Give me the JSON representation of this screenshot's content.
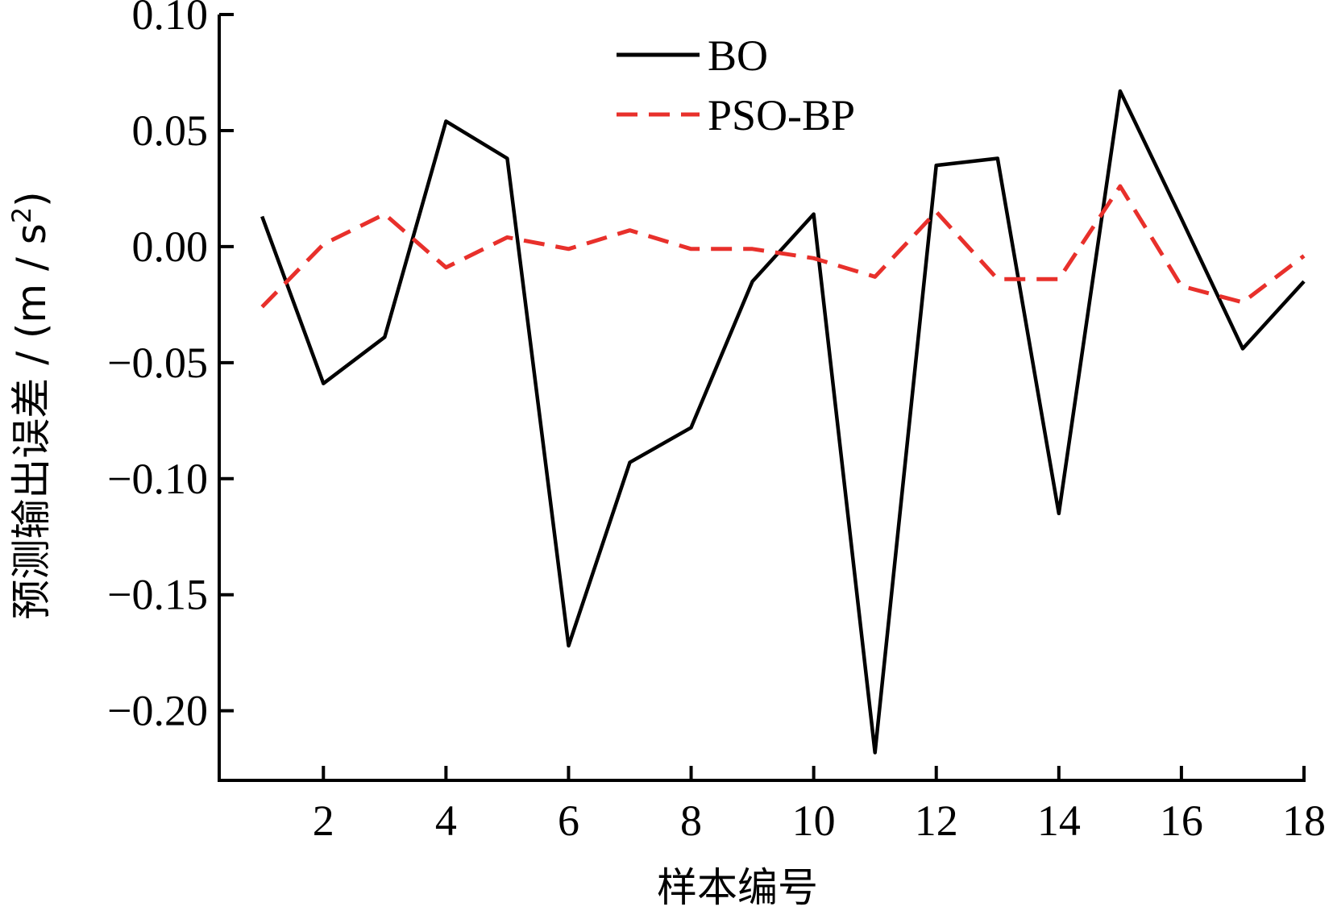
{
  "chart_data": {
    "type": "line",
    "x": [
      1,
      2,
      3,
      4,
      5,
      6,
      7,
      8,
      9,
      10,
      11,
      12,
      13,
      14,
      15,
      16,
      17,
      18
    ],
    "series": [
      {
        "name": "BO",
        "color": "#000000",
        "dash": "solid",
        "values": [
          0.013,
          -0.059,
          -0.039,
          0.054,
          0.038,
          -0.172,
          -0.093,
          -0.078,
          -0.015,
          0.014,
          -0.218,
          0.035,
          0.038,
          -0.115,
          0.067,
          0.012,
          -0.044,
          -0.015
        ]
      },
      {
        "name": "PSO-BP",
        "color": "#e8302b",
        "dash": "dashed",
        "values": [
          -0.026,
          0.001,
          0.014,
          -0.009,
          0.004,
          -0.001,
          0.007,
          -0.001,
          -0.001,
          -0.005,
          -0.013,
          0.015,
          -0.014,
          -0.014,
          0.026,
          -0.017,
          -0.024,
          -0.004
        ]
      }
    ],
    "xlabel": "样本编号",
    "ylabel_main": "预测输出误差 / (m / s",
    "ylabel_sup": "2",
    "ylabel_end": ")",
    "xlim": [
      0.3,
      18
    ],
    "ylim": [
      -0.23,
      0.1
    ],
    "xticks": [
      2,
      4,
      6,
      8,
      10,
      12,
      14,
      16,
      18
    ],
    "xtick_labels": [
      "2",
      "4",
      "6",
      "8",
      "10",
      "12",
      "14",
      "16",
      "18"
    ],
    "yticks": [
      0.1,
      0.05,
      0.0,
      -0.05,
      -0.1,
      -0.15,
      -0.2
    ],
    "ytick_labels": [
      "0.10",
      "0.05",
      "0.00",
      "−0.05",
      "−0.10",
      "−0.15",
      "−0.20"
    ],
    "legend_position": "top-center",
    "grid": false
  }
}
